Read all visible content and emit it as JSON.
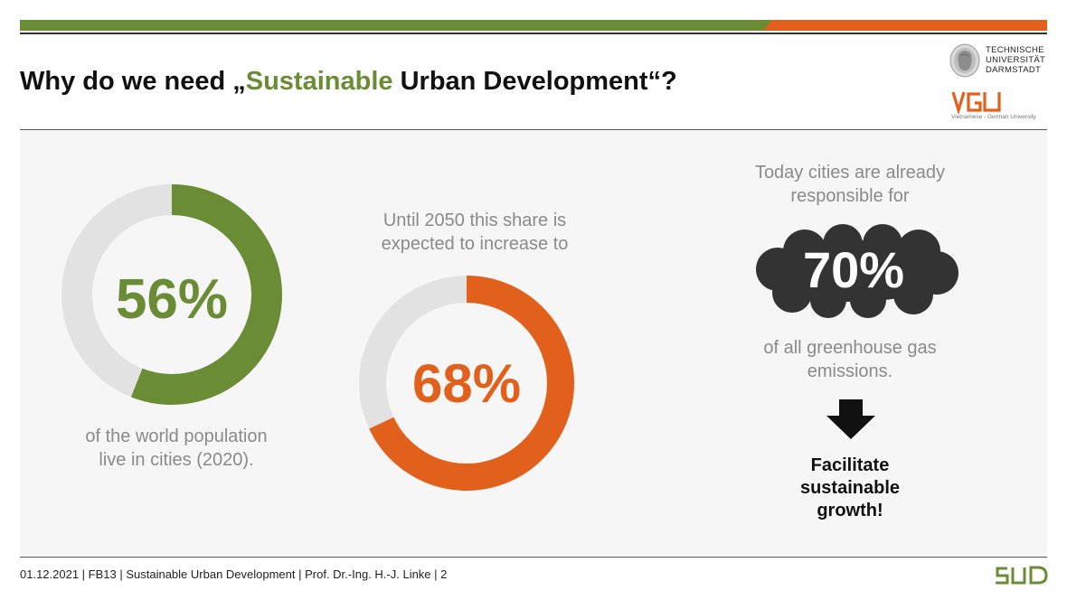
{
  "header": {
    "title_prefix": "Why do we need „",
    "title_highlight": "Sustainable",
    "title_suffix": " Urban Development“?",
    "colors": {
      "green": "#6a8c34",
      "orange": "#e0601c"
    }
  },
  "logos": {
    "tud": {
      "line1": "TECHNISCHE",
      "line2": "UNIVERSITÄT",
      "line3": "DARMSTADT"
    },
    "vgu": {
      "name": "VGU",
      "subtitle": "Vietnamese - German University"
    },
    "sud": {
      "name": "SUD"
    }
  },
  "main": {
    "stat_2020": {
      "value": "56%",
      "fraction": 0.56,
      "caption_line1": "of the world population",
      "caption_line2": "live in cities (2020)."
    },
    "stat_2050": {
      "intro_line1": "Until 2050 this share is",
      "intro_line2": "expected to increase to",
      "value": "68%",
      "fraction": 0.68
    },
    "emissions": {
      "intro_line1": "Today cities are already",
      "intro_line2": "responsible for",
      "value": "70%",
      "caption_line1": "of all greenhouse gas",
      "caption_line2": "emissions."
    },
    "conclusion": {
      "line1": "Facilitate",
      "line2": "sustainable",
      "line3": "growth!"
    }
  },
  "footer": {
    "text": "01.12.2021  |  FB13  |  Sustainable Urban Development  |  Prof. Dr.-Ing. H.-J. Linke  |  2"
  }
}
